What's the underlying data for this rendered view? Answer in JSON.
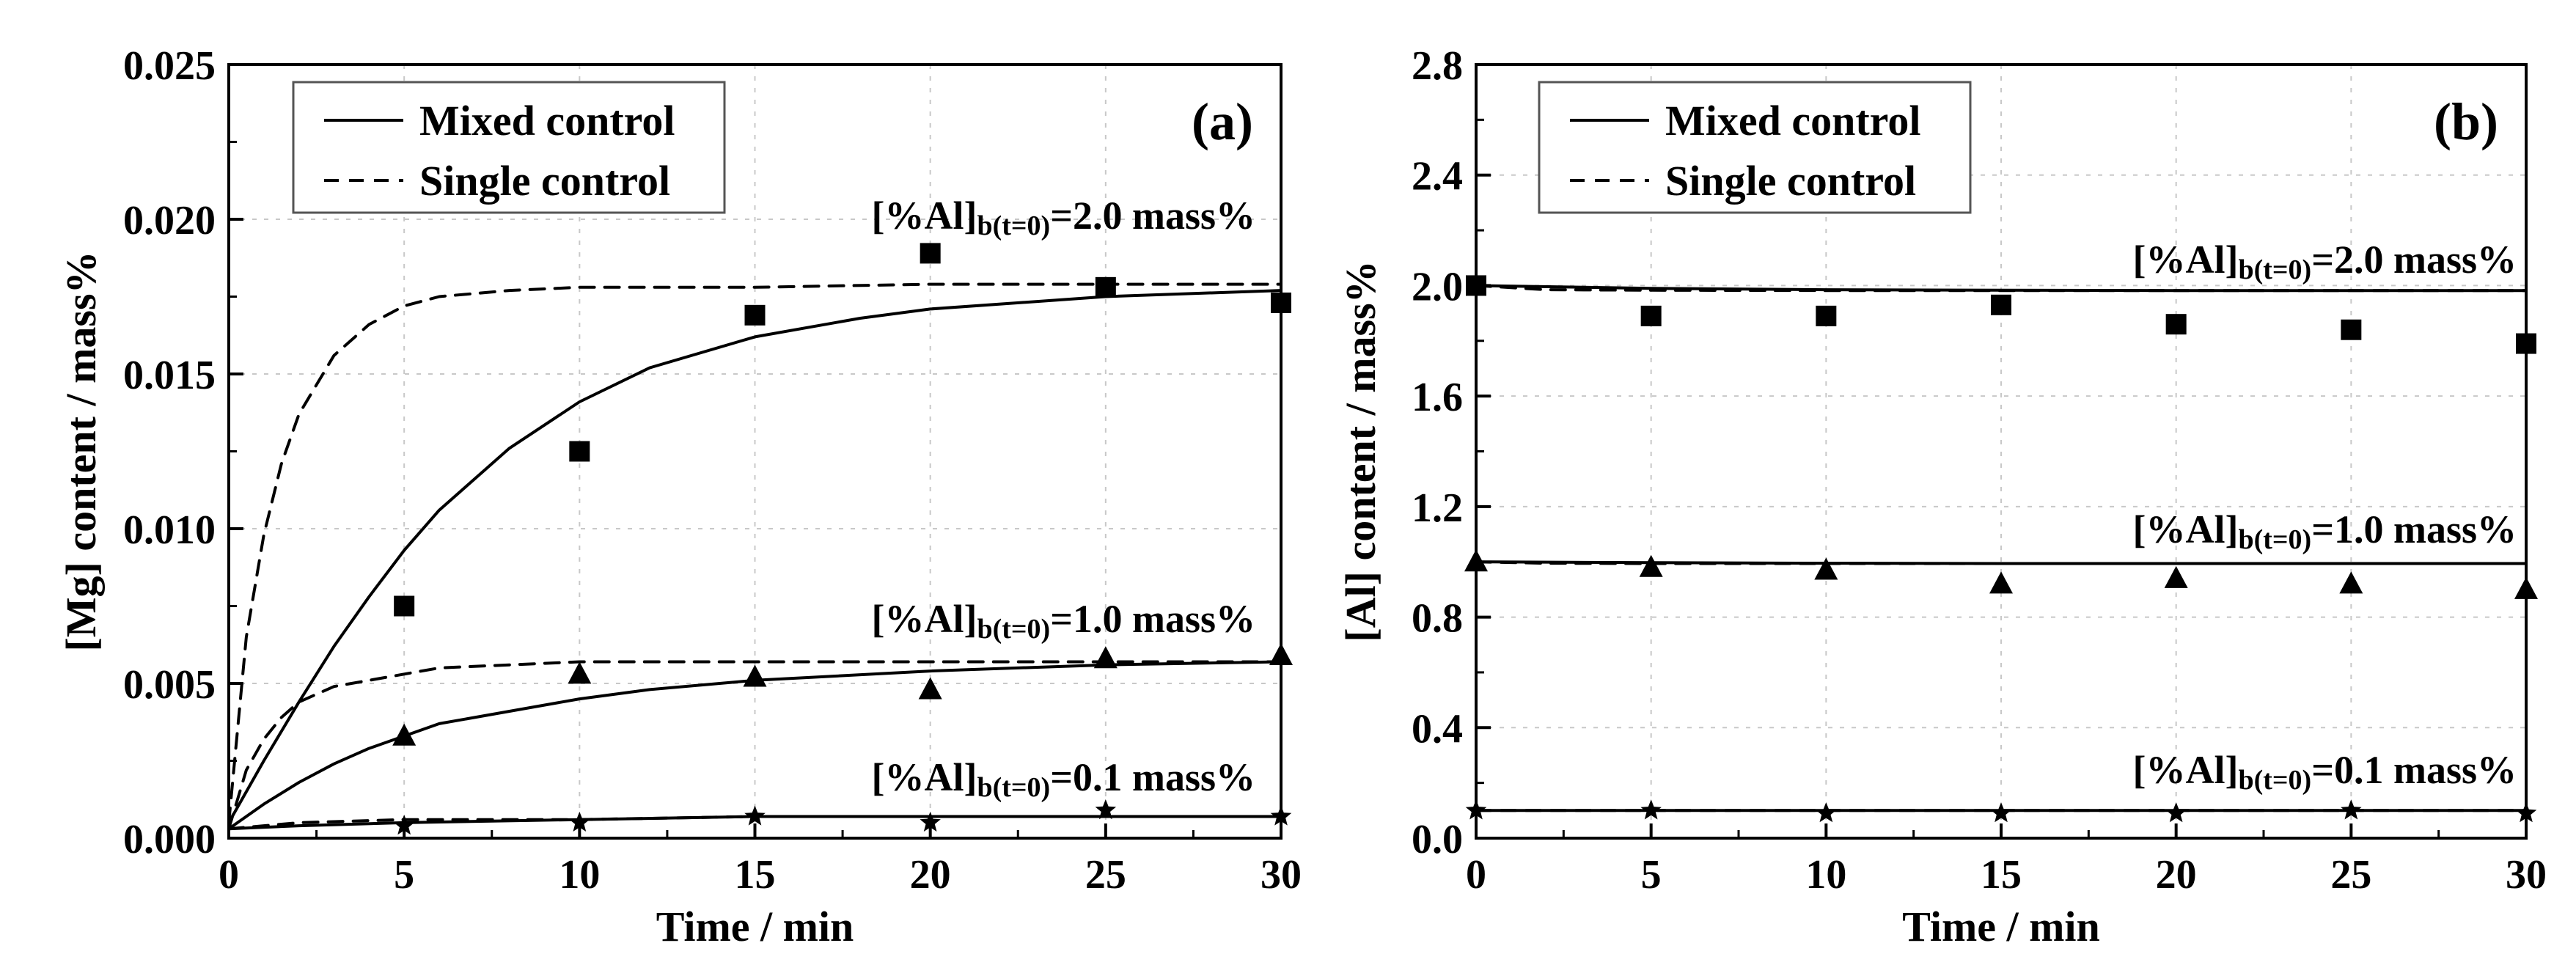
{
  "chart_data": [
    {
      "type": "scatter",
      "panel_label": "(a)",
      "xlabel": "Time / min",
      "ylabel": "[Mg] content / mass%",
      "xlim": [
        0,
        30
      ],
      "ylim": [
        0,
        0.025
      ],
      "xticks": [
        0,
        5,
        10,
        15,
        20,
        25,
        30
      ],
      "xtick_labels": [
        "0",
        "5",
        "10",
        "15",
        "20",
        "25",
        "30"
      ],
      "yticks": [
        0,
        0.005,
        0.01,
        0.015,
        0.02,
        0.025
      ],
      "ytick_labels": [
        "0.000",
        "0.005",
        "0.010",
        "0.015",
        "0.020",
        "0.025"
      ],
      "grid": true,
      "legend": {
        "position": "top-left",
        "entries": [
          {
            "label": "Mixed control",
            "style": "solid"
          },
          {
            "label": "Single control",
            "style": "dashed"
          }
        ]
      },
      "annotations": [
        {
          "text": "[%Al]",
          "sub": "b(t=0)",
          "tail": "=2.0 mass%"
        },
        {
          "text": "[%Al]",
          "sub": "b(t=0)",
          "tail": "=1.0 mass%"
        },
        {
          "text": "[%Al]",
          "sub": "b(t=0)",
          "tail": "=0.1 mass%"
        }
      ],
      "series": [
        {
          "group": "[%Al]b(t=0)=2.0 mass%",
          "marker": "square",
          "x": [
            5,
            10,
            15,
            20,
            25,
            30
          ],
          "y": [
            0.0075,
            0.0125,
            0.0169,
            0.0189,
            0.0178,
            0.0173
          ]
        },
        {
          "group": "[%Al]b(t=0)=1.0 mass%",
          "marker": "triangle",
          "x": [
            5,
            10,
            15,
            20,
            25,
            30
          ],
          "y": [
            0.0033,
            0.0053,
            0.0052,
            0.0048,
            0.0058,
            0.0059
          ]
        },
        {
          "group": "[%Al]b(t=0)=0.1 mass%",
          "marker": "star",
          "x": [
            5,
            10,
            15,
            20,
            25,
            30
          ],
          "y": [
            0.0004,
            0.0005,
            0.0007,
            0.0005,
            0.0009,
            0.0007
          ]
        }
      ],
      "curves": [
        {
          "group": "[%Al]b(t=0)=2.0 mass%",
          "style": "solid",
          "x": [
            0,
            1,
            2,
            3,
            4,
            5,
            6,
            8,
            10,
            12,
            15,
            18,
            20,
            25,
            30
          ],
          "y": [
            0.0005,
            0.0025,
            0.0044,
            0.0062,
            0.0078,
            0.0093,
            0.0106,
            0.0126,
            0.0141,
            0.0152,
            0.0162,
            0.0168,
            0.0171,
            0.0175,
            0.0177
          ]
        },
        {
          "group": "[%Al]b(t=0)=2.0 mass%",
          "style": "dashed",
          "x": [
            0,
            0.5,
            1,
            1.5,
            2,
            3,
            4,
            5,
            6,
            7,
            8,
            10,
            12,
            15,
            20,
            25,
            30
          ],
          "y": [
            0.0005,
            0.0065,
            0.0098,
            0.0121,
            0.0137,
            0.0156,
            0.0166,
            0.0172,
            0.0175,
            0.0176,
            0.0177,
            0.0178,
            0.0178,
            0.0178,
            0.0179,
            0.0179,
            0.0179
          ]
        },
        {
          "group": "[%Al]b(t=0)=1.0 mass%",
          "style": "solid",
          "x": [
            0,
            1,
            2,
            3,
            4,
            5,
            6,
            8,
            10,
            12,
            15,
            20,
            25,
            30
          ],
          "y": [
            0.0003,
            0.0011,
            0.0018,
            0.0024,
            0.0029,
            0.0033,
            0.0037,
            0.0041,
            0.0045,
            0.0048,
            0.0051,
            0.0054,
            0.0056,
            0.0057
          ]
        },
        {
          "group": "[%Al]b(t=0)=1.0 mass%",
          "style": "dashed",
          "x": [
            0,
            0.5,
            1,
            1.5,
            2,
            3,
            4,
            5,
            6,
            8,
            10,
            15,
            20,
            25,
            30
          ],
          "y": [
            0.0003,
            0.0022,
            0.0032,
            0.0039,
            0.0044,
            0.0049,
            0.0051,
            0.0053,
            0.0055,
            0.0056,
            0.0057,
            0.0057,
            0.0057,
            0.0057,
            0.0057
          ]
        },
        {
          "group": "[%Al]b(t=0)=0.1 mass%",
          "style": "solid",
          "x": [
            0,
            2,
            5,
            10,
            15,
            20,
            25,
            30
          ],
          "y": [
            0.0003,
            0.0004,
            0.0005,
            0.0006,
            0.0007,
            0.0007,
            0.0007,
            0.0007
          ]
        },
        {
          "group": "[%Al]b(t=0)=0.1 mass%",
          "style": "dashed",
          "x": [
            0,
            1,
            2,
            5,
            10,
            15,
            20,
            25,
            30
          ],
          "y": [
            0.0003,
            0.0004,
            0.0005,
            0.0006,
            0.0006,
            0.0007,
            0.0007,
            0.0007,
            0.0007
          ]
        }
      ]
    },
    {
      "type": "scatter",
      "panel_label": "(b)",
      "xlabel": "Time / min",
      "ylabel": "[Al] content / mass%",
      "xlim": [
        0,
        30
      ],
      "ylim": [
        0,
        2.8
      ],
      "xticks": [
        0,
        5,
        10,
        15,
        20,
        25,
        30
      ],
      "xtick_labels": [
        "0",
        "5",
        "10",
        "15",
        "20",
        "25",
        "30"
      ],
      "yticks": [
        0,
        0.4,
        0.8,
        1.2,
        1.6,
        2.0,
        2.4,
        2.8
      ],
      "ytick_labels": [
        "0.0",
        "0.4",
        "0.8",
        "1.2",
        "1.6",
        "2.0",
        "2.4",
        "2.8"
      ],
      "grid": true,
      "legend": {
        "position": "top-left",
        "entries": [
          {
            "label": "Mixed control",
            "style": "solid"
          },
          {
            "label": "Single control",
            "style": "dashed"
          }
        ]
      },
      "annotations": [
        {
          "text": "[%Al]",
          "sub": "b(t=0)",
          "tail": "=2.0 mass%"
        },
        {
          "text": "[%Al]",
          "sub": "b(t=0)",
          "tail": "=1.0 mass%"
        },
        {
          "text": "[%Al]",
          "sub": "b(t=0)",
          "tail": "=0.1 mass%"
        }
      ],
      "series": [
        {
          "group": "[%Al]b(t=0)=2.0 mass%",
          "marker": "square",
          "x": [
            0,
            5,
            10,
            15,
            20,
            25,
            30
          ],
          "y": [
            2.0,
            1.89,
            1.89,
            1.93,
            1.86,
            1.84,
            1.79
          ]
        },
        {
          "group": "[%Al]b(t=0)=1.0 mass%",
          "marker": "triangle",
          "x": [
            0,
            5,
            10,
            15,
            20,
            25,
            30
          ],
          "y": [
            1.0,
            0.98,
            0.97,
            0.92,
            0.94,
            0.92,
            0.9
          ]
        },
        {
          "group": "[%Al]b(t=0)=0.1 mass%",
          "marker": "star",
          "x": [
            0,
            5,
            10,
            15,
            20,
            25,
            30
          ],
          "y": [
            0.1,
            0.1,
            0.09,
            0.09,
            0.09,
            0.1,
            0.09
          ]
        }
      ],
      "curves": [
        {
          "group": "[%Al]b(t=0)=2.0 mass%",
          "style": "solid",
          "x": [
            0,
            5,
            10,
            15,
            20,
            25,
            30
          ],
          "y": [
            2.0,
            1.99,
            1.985,
            1.983,
            1.982,
            1.982,
            1.982
          ]
        },
        {
          "group": "[%Al]b(t=0)=2.0 mass%",
          "style": "dashed",
          "x": [
            0,
            2,
            5,
            10,
            15,
            20,
            25,
            30
          ],
          "y": [
            2.0,
            1.985,
            1.983,
            1.982,
            1.982,
            1.982,
            1.982,
            1.982
          ]
        },
        {
          "group": "[%Al]b(t=0)=1.0 mass%",
          "style": "solid",
          "x": [
            0,
            5,
            10,
            15,
            20,
            25,
            30
          ],
          "y": [
            1.0,
            0.997,
            0.995,
            0.994,
            0.994,
            0.994,
            0.994
          ]
        },
        {
          "group": "[%Al]b(t=0)=1.0 mass%",
          "style": "dashed",
          "x": [
            0,
            2,
            5,
            10,
            15,
            20,
            25,
            30
          ],
          "y": [
            1.0,
            0.995,
            0.994,
            0.994,
            0.994,
            0.994,
            0.994,
            0.994
          ]
        },
        {
          "group": "[%Al]b(t=0)=0.1 mass%",
          "style": "solid",
          "x": [
            0,
            5,
            10,
            15,
            20,
            25,
            30
          ],
          "y": [
            0.1,
            0.1,
            0.1,
            0.1,
            0.1,
            0.1,
            0.1
          ]
        },
        {
          "group": "[%Al]b(t=0)=0.1 mass%",
          "style": "dashed",
          "x": [
            0,
            5,
            10,
            15,
            20,
            25,
            30
          ],
          "y": [
            0.1,
            0.1,
            0.1,
            0.1,
            0.1,
            0.1,
            0.1
          ]
        }
      ]
    }
  ]
}
